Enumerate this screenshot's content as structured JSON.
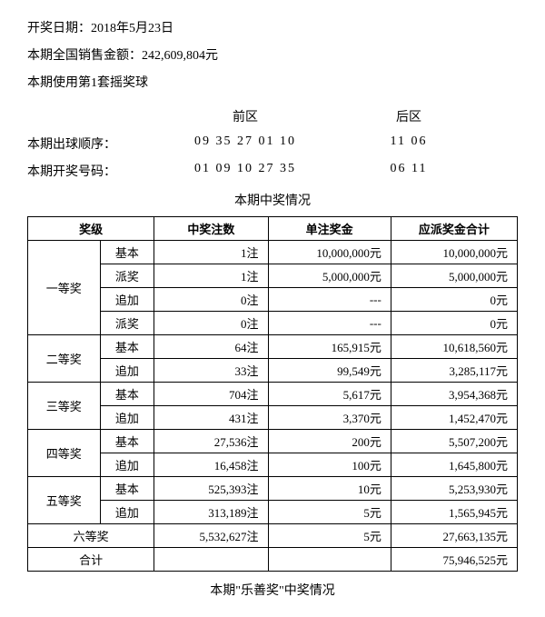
{
  "header": {
    "date_label": "开奖日期：",
    "date_value": "2018年5月23日",
    "sales_label": "本期全国销售金额：",
    "sales_value": "242,609,804元",
    "ballset_label": "本期使用第1套摇奖球"
  },
  "numbers": {
    "front_label": "前区",
    "back_label": "后区",
    "draw_order_label": "本期出球顺序：",
    "draw_order_front": "09 35 27 01 10",
    "draw_order_back": "11 06",
    "winning_label": "本期开奖号码：",
    "winning_front": "01 09 10 27 35",
    "winning_back": "06 11"
  },
  "prize_section_title": "本期中奖情况",
  "table": {
    "headers": {
      "level": "奖级",
      "count": "中奖注数",
      "unit": "单注奖金",
      "total": "应派奖金合计"
    },
    "groups": [
      {
        "name": "一等奖",
        "rows": [
          {
            "sub": "基本",
            "count": "1注",
            "unit": "10,000,000元",
            "total": "10,000,000元"
          },
          {
            "sub": "派奖",
            "count": "1注",
            "unit": "5,000,000元",
            "total": "5,000,000元"
          },
          {
            "sub": "追加",
            "count": "0注",
            "unit": "---",
            "total": "0元"
          },
          {
            "sub": "派奖",
            "count": "0注",
            "unit": "---",
            "total": "0元"
          }
        ]
      },
      {
        "name": "二等奖",
        "rows": [
          {
            "sub": "基本",
            "count": "64注",
            "unit": "165,915元",
            "total": "10,618,560元"
          },
          {
            "sub": "追加",
            "count": "33注",
            "unit": "99,549元",
            "total": "3,285,117元"
          }
        ]
      },
      {
        "name": "三等奖",
        "rows": [
          {
            "sub": "基本",
            "count": "704注",
            "unit": "5,617元",
            "total": "3,954,368元"
          },
          {
            "sub": "追加",
            "count": "431注",
            "unit": "3,370元",
            "total": "1,452,470元"
          }
        ]
      },
      {
        "name": "四等奖",
        "rows": [
          {
            "sub": "基本",
            "count": "27,536注",
            "unit": "200元",
            "total": "5,507,200元"
          },
          {
            "sub": "追加",
            "count": "16,458注",
            "unit": "100元",
            "total": "1,645,800元"
          }
        ]
      },
      {
        "name": "五等奖",
        "rows": [
          {
            "sub": "基本",
            "count": "525,393注",
            "unit": "10元",
            "total": "5,253,930元"
          },
          {
            "sub": "追加",
            "count": "313,189注",
            "unit": "5元",
            "total": "1,565,945元"
          }
        ]
      }
    ],
    "sixth": {
      "name": "六等奖",
      "count": "5,532,627注",
      "unit": "5元",
      "total": "27,663,135元"
    },
    "sum": {
      "name": "合计",
      "count": "",
      "unit": "",
      "total": "75,946,525元"
    }
  },
  "footer_title": "本期\"乐善奖\"中奖情况"
}
